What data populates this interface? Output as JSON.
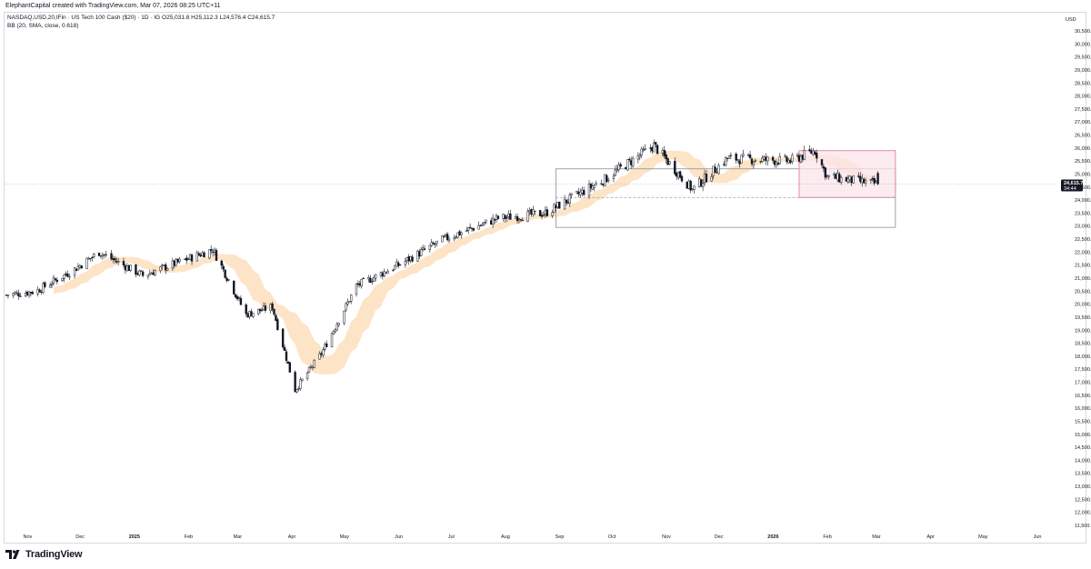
{
  "header": {
    "credit": "ElephantCapital created with TradingView.com, Mar 07, 2026 08:25 UTC+11"
  },
  "legend": {
    "symbol_line": "NASDAQ,USD,20,IFin · US Tech 100 Cash ($20) · 1D · IG  O25,031.8  H25,112.3  L24,576.4  C24,615.7",
    "bb_line": "BB (20, SMA, close, 0.618)"
  },
  "price_axis": {
    "currency": "USD",
    "ticks": [
      "30,500.0",
      "30,000.0",
      "29,500.0",
      "29,000.0",
      "28,500.0",
      "28,000.0",
      "27,500.0",
      "27,000.0",
      "26,500.0",
      "26,000.0",
      "25,500.0",
      "25,000.0",
      "24,500.0",
      "24,000.0",
      "23,500.0",
      "23,000.0",
      "22,500.0",
      "22,000.0",
      "21,500.0",
      "21,000.0",
      "20,500.0",
      "20,000.0",
      "19,500.0",
      "19,000.0",
      "18,500.0",
      "18,000.0",
      "17,500.0",
      "17,000.0",
      "16,500.0",
      "16,000.0",
      "15,500.0",
      "15,000.0",
      "14,500.0",
      "14,000.0",
      "13,500.0",
      "13,000.0",
      "12,500.0",
      "12,000.0",
      "11,500.0"
    ],
    "last_price_label": "24,615.7",
    "countdown_label": "34:44"
  },
  "time_axis": {
    "labels": [
      "Nov",
      "Dec",
      "2025",
      "Feb",
      "Mar",
      "Apr",
      "May",
      "Jun",
      "Jul",
      "Aug",
      "Sep",
      "Oct",
      "Nov",
      "Dec",
      "2026",
      "Feb",
      "Mar",
      "Apr",
      "May",
      "Jun"
    ],
    "bold_labels": [
      "2025",
      "2026"
    ]
  },
  "colors": {
    "up": "#131722",
    "down": "#131722",
    "bb_band": "#fde3c4",
    "rect_pink_fill": "#fbe4ea",
    "rect_pink_stroke": "#e58aa6",
    "rect_outline": "#8a8f9a",
    "last_price_bg": "#131722"
  },
  "chart_data": {
    "type": "candlestick",
    "title": "NASDAQ,USD,20,IFin · US Tech 100 Cash ($20) · 1D · IG",
    "timeframe": "1D",
    "ylim": [
      11500,
      30500
    ],
    "last_ohlc": {
      "open": 25031.8,
      "high": 25112.3,
      "low": 24576.4,
      "close": 24615.7
    },
    "indicator": "BB (20, SMA, close, 0.618)",
    "x_range": [
      "2024-10-24",
      "2026-06-15"
    ],
    "path_keypoints": [
      {
        "date": "2024-10-24",
        "close": 20350
      },
      {
        "date": "2024-11-10",
        "close": 20500
      },
      {
        "date": "2024-12-01",
        "close": 21300
      },
      {
        "date": "2024-12-16",
        "close": 22000
      },
      {
        "date": "2025-01-10",
        "close": 21100
      },
      {
        "date": "2025-02-19",
        "close": 22100
      },
      {
        "date": "2025-03-10",
        "close": 19600
      },
      {
        "date": "2025-03-25",
        "close": 19900
      },
      {
        "date": "2025-04-07",
        "close": 16700
      },
      {
        "date": "2025-04-22",
        "close": 18100
      },
      {
        "date": "2025-05-12",
        "close": 20700
      },
      {
        "date": "2025-06-05",
        "close": 21500
      },
      {
        "date": "2025-07-01",
        "close": 22500
      },
      {
        "date": "2025-08-01",
        "close": 23300
      },
      {
        "date": "2025-08-28",
        "close": 23500
      },
      {
        "date": "2025-10-01",
        "close": 24800
      },
      {
        "date": "2025-10-29",
        "close": 26100
      },
      {
        "date": "2025-11-20",
        "close": 24400
      },
      {
        "date": "2025-12-10",
        "close": 25600
      },
      {
        "date": "2026-01-15",
        "close": 25500
      },
      {
        "date": "2026-01-29",
        "close": 25900
      },
      {
        "date": "2026-02-05",
        "close": 24900
      },
      {
        "date": "2026-03-06",
        "close": 24615.7
      }
    ],
    "annotations": [
      {
        "type": "rectangle",
        "style": "outline",
        "from_date": "2025-09-03",
        "to_date": "2026-03-16",
        "price_top": 25200,
        "price_bottom": 22950
      },
      {
        "type": "rectangle",
        "style": "pink",
        "from_date": "2026-01-20",
        "to_date": "2026-03-16",
        "price_top": 25900,
        "price_bottom": 24100
      },
      {
        "type": "horizontal-line",
        "style": "dashed",
        "from_date": "2025-09-03",
        "to_date": "2026-03-16",
        "price": 24100
      }
    ]
  }
}
